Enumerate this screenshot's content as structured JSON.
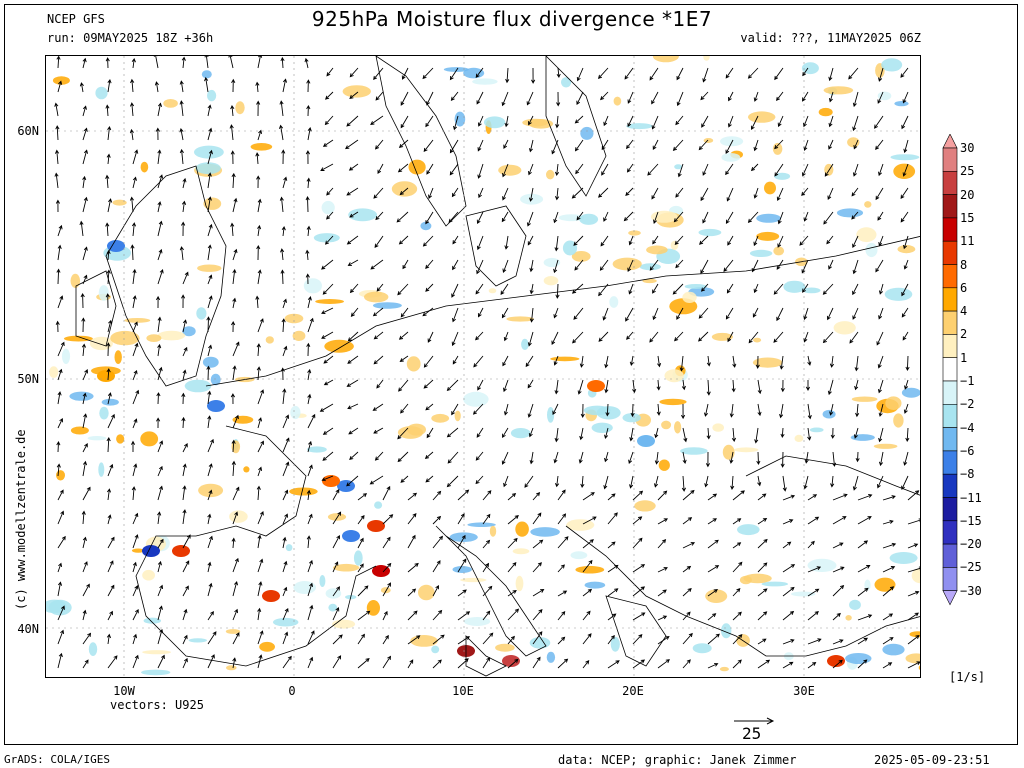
{
  "header": {
    "model": "NCEP GFS",
    "title": "925hPa Moisture flux divergence *1E7",
    "run": "run: 09MAY2025 18Z +36h",
    "valid": "valid: ???, 11MAY2025 06Z"
  },
  "map": {
    "lat_labels": [
      "60N",
      "50N",
      "40N"
    ],
    "lon_labels": [
      "10W",
      "0",
      "10E",
      "20E",
      "30E"
    ],
    "vectors_label": "vectors: U925",
    "reference_vector": "25"
  },
  "legend": {
    "values": [
      "30",
      "25",
      "20",
      "15",
      "11",
      "8",
      "6",
      "4",
      "2",
      "1",
      "−1",
      "−2",
      "−4",
      "−6",
      "−8",
      "−11",
      "−15",
      "−20",
      "−25",
      "−30"
    ],
    "colors": [
      "#f5a0a0",
      "#e08080",
      "#c84040",
      "#a01818",
      "#c80000",
      "#e83800",
      "#ff6a00",
      "#ffa800",
      "#fdd070",
      "#fff0c0",
      "#ffffff",
      "#d8f4f8",
      "#a8e4f0",
      "#70b8f0",
      "#3c80e8",
      "#1838c0",
      "#1c1ca0",
      "#3030c0",
      "#6060d8",
      "#9090f0",
      "#b8a8f8"
    ],
    "units": "[1/s]"
  },
  "footer": {
    "left": "GrADS: COLA/IGES",
    "center": "data: NCEP; graphic: Janek Zimmer",
    "right": "2025-05-09-23:51"
  },
  "copyright": "(c) www.modellzentrale.de"
}
